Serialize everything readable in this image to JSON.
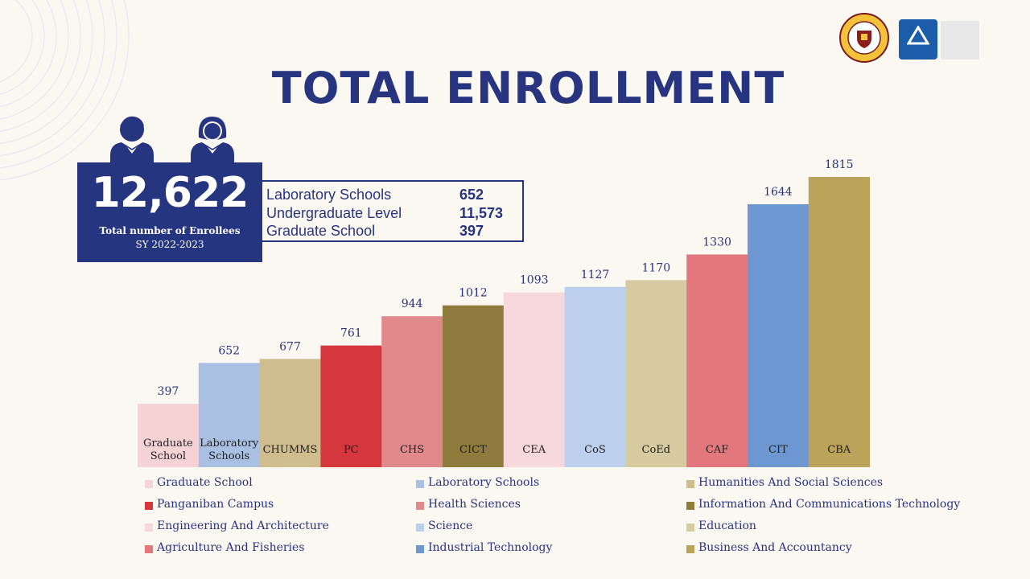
{
  "header": {
    "title": "TOTAL ENROLLMENT"
  },
  "summary": {
    "total": "12,622",
    "label": "Total number of Enrollees",
    "school_year": "SY 2022-2023",
    "levels": [
      {
        "name": "Laboratory Schools",
        "value": "652"
      },
      {
        "name": "Undergraduate Level",
        "value": "11,573"
      },
      {
        "name": "Graduate School",
        "value": "397"
      }
    ]
  },
  "chart_data": {
    "type": "bar",
    "categories": [
      "Graduate\nSchool",
      "Laboratory\nSchools",
      "CHUMMS",
      "PC",
      "CHS",
      "CICT",
      "CEA",
      "CoS",
      "CoEd",
      "CAF",
      "CIT",
      "CBA"
    ],
    "values": [
      397,
      652,
      677,
      761,
      944,
      1012,
      1093,
      1127,
      1170,
      1330,
      1644,
      1815
    ],
    "colors": [
      "#f5d3d5",
      "#a9c0e2",
      "#d0bd8d",
      "#d6373c",
      "#e08a8b",
      "#8f7b3b",
      "#f6d8dc",
      "#bccfec",
      "#d6cba0",
      "#e2787d",
      "#6c97d1",
      "#bca35a"
    ],
    "ylim": [
      0,
      1815
    ],
    "legend": [
      {
        "label": "Graduate School",
        "color": "#f5d3d5"
      },
      {
        "label": "Laboratory Schools",
        "color": "#a9c0e2"
      },
      {
        "label": "Humanities And Social Sciences",
        "color": "#d0bd8d"
      },
      {
        "label": "Panganiban Campus",
        "color": "#d6373c"
      },
      {
        "label": "Health Sciences",
        "color": "#e08a8b"
      },
      {
        "label": "Information And Communications Technology",
        "color": "#8f7b3b"
      },
      {
        "label": "Engineering And Architecture",
        "color": "#f6d8dc"
      },
      {
        "label": "Science",
        "color": "#bccfec"
      },
      {
        "label": "Education",
        "color": "#d6cba0"
      },
      {
        "label": "Agriculture And Fisheries",
        "color": "#e2787d"
      },
      {
        "label": "Industrial Technology",
        "color": "#6c97d1"
      },
      {
        "label": "Business And Accountancy",
        "color": "#bca35a"
      }
    ]
  },
  "accent": "#273580"
}
